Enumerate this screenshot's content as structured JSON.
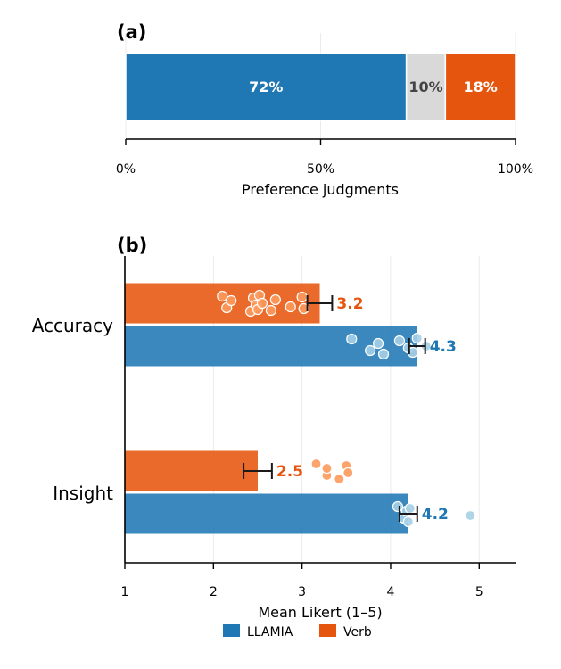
{
  "colors": {
    "llamia": "#1f77b4",
    "verb": "#e6550d",
    "tie": "#d9d9d9",
    "llamia_points": "#a6cfe6",
    "verb_points": "#fd9a5c"
  },
  "chart_data": [
    {
      "type": "bar",
      "panel_label": "(a)",
      "orientation": "horizontal-stacked",
      "xlabel": "Preference judgments",
      "xlim": [
        0,
        100
      ],
      "xticks": [
        0,
        50,
        100
      ],
      "xtick_labels": [
        "0%",
        "50%",
        "100%"
      ],
      "segments": [
        {
          "value": 72,
          "label": "72%",
          "color": "#1f77b4"
        },
        {
          "value": 10,
          "label": "10%",
          "color": "#d9d9d9"
        },
        {
          "value": 18,
          "label": "18%",
          "color": "#e6550d"
        }
      ]
    },
    {
      "type": "bar",
      "panel_label": "(b)",
      "orientation": "horizontal-grouped",
      "xlabel": "Mean Likert (1–5)",
      "xlim": [
        1,
        5.42
      ],
      "xticks": [
        1,
        2,
        3,
        4,
        5
      ],
      "xtick_labels": [
        "1",
        "2",
        "3",
        "4",
        "5"
      ],
      "grid": true,
      "categories": [
        "Accuracy",
        "Insight"
      ],
      "legend": [
        {
          "name": "LLAMIA",
          "color": "#1f77b4"
        },
        {
          "name": "Verb",
          "color": "#e6550d"
        }
      ],
      "series": [
        {
          "name": "Verb",
          "values": [
            3.2,
            2.5
          ],
          "value_labels": [
            "3.2",
            "2.5"
          ],
          "error": [
            [
              3.06,
              3.34
            ],
            [
              2.34,
              2.66
            ]
          ],
          "points": [
            [
              2.1,
              2.15,
              2.2,
              2.42,
              2.45,
              2.48,
              2.5,
              2.52,
              2.55,
              2.65,
              2.7,
              2.87,
              3.0,
              3.02
            ],
            [
              3.16,
              3.28,
              3.28,
              3.42,
              3.5,
              3.52
            ]
          ]
        },
        {
          "name": "LLAMIA",
          "values": [
            4.3,
            4.2
          ],
          "value_labels": [
            "4.3",
            "4.2"
          ],
          "error": [
            [
              4.21,
              4.39
            ],
            [
              4.1,
              4.3
            ]
          ],
          "points": [
            [
              3.56,
              3.77,
              3.86,
              3.92,
              4.1,
              4.2,
              4.25,
              4.3,
              4.4
            ],
            [
              4.08,
              4.15,
              4.18,
              4.2,
              4.22,
              4.9
            ]
          ]
        }
      ]
    }
  ]
}
